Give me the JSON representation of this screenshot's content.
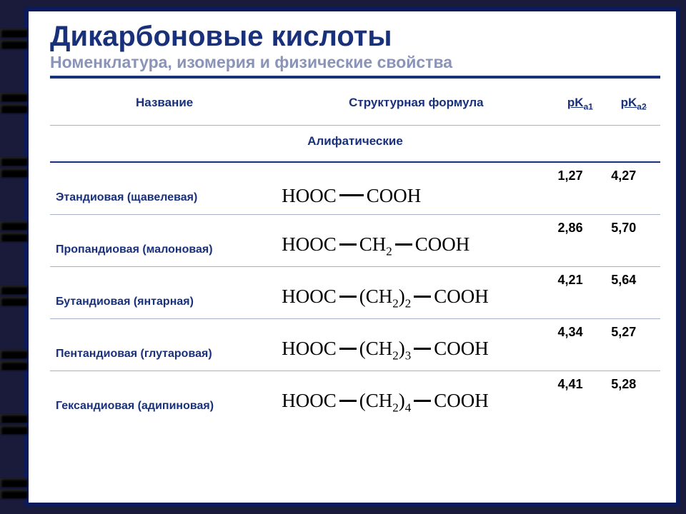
{
  "colors": {
    "frame": "#0a1a5a",
    "title": "#19317a",
    "subtitle": "#8a94b8",
    "divider": "#19317a",
    "row_border": "#a8b0c8",
    "background": "#ffffff",
    "page_bg": "#1a1a3a"
  },
  "title": "Дикарбоновые кислоты",
  "subtitle": "Номенклатура, изомерия и физические свойства",
  "headers": {
    "name": "Название",
    "formula": "Структурная формула",
    "pka1_base": "pK",
    "pka1_sub": "a1",
    "pka2_base": "pK",
    "pka2_sub": "a2"
  },
  "section_label": "Алифатические",
  "rows": [
    {
      "name": "Этандиовая (щавелевая)",
      "formula_parts": [
        "HOOC",
        "COOH"
      ],
      "pka1": "1,27",
      "pka2": "4,27"
    },
    {
      "name": "Пропандиовая (малоновая)",
      "formula_parts": [
        "HOOC",
        "CH",
        {
          "sub": "2"
        },
        "COOH"
      ],
      "pka1": "2,86",
      "pka2": "5,70"
    },
    {
      "name": "Бутандиовая (янтарная)",
      "formula_parts": [
        "HOOC",
        "(CH",
        {
          "sub": "2"
        },
        ")",
        {
          "sub": "2"
        },
        "COOH"
      ],
      "pka1": "4,21",
      "pka2": "5,64"
    },
    {
      "name": "Пентандиовая (глутаровая)",
      "formula_parts": [
        "HOOC",
        "(CH",
        {
          "sub": "2"
        },
        ")",
        {
          "sub": "3"
        },
        "COOH"
      ],
      "pka1": "4,34",
      "pka2": "5,27"
    },
    {
      "name": "Гександиовая (адипиновая)",
      "formula_parts": [
        "HOOC",
        "(CH",
        {
          "sub": "2"
        },
        ")",
        {
          "sub": "4"
        },
        "COOH"
      ],
      "pka1": "4,41",
      "pka2": "5,28"
    }
  ],
  "binder_hole_positions": [
    40,
    130,
    220,
    310,
    400,
    490,
    580,
    670
  ]
}
